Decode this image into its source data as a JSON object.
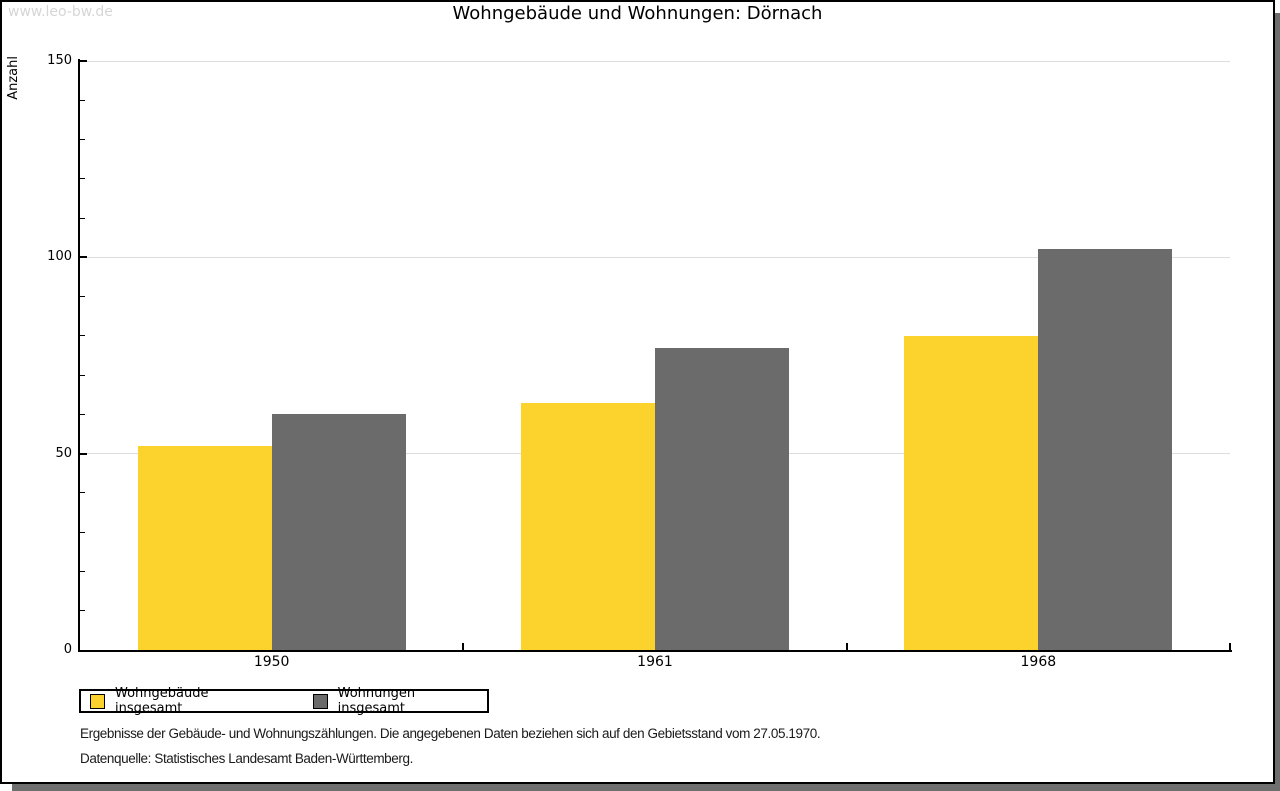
{
  "watermark": "www.leo-bw.de",
  "chart_data": {
    "type": "bar",
    "title": "Wohngebäude und Wohnungen: Dörnach",
    "ylabel": "Anzahl",
    "xlabel": "",
    "ylim": [
      0,
      150
    ],
    "yticks": [
      0,
      50,
      100,
      150
    ],
    "y_minor_step": 10,
    "grid": "horizontal-major-gridlines",
    "legend_position": "bottom-left",
    "categories": [
      "1950",
      "1961",
      "1968"
    ],
    "series": [
      {
        "name": "Wohngebäude insgesamt",
        "color": "#FCD32D",
        "values": [
          52,
          63,
          80
        ]
      },
      {
        "name": "Wohnungen insgesamt",
        "color": "#6B6B6B",
        "values": [
          60,
          77,
          102
        ]
      }
    ]
  },
  "footer": {
    "line1": "Ergebnisse der Gebäude- und Wohnungszählungen. Die angegebenen Daten beziehen sich auf den Gebietsstand vom 27.05.1970.",
    "line2": "Datenquelle: Statistisches Landesamt Baden-Württemberg."
  },
  "colors": {
    "bar_yellow": "#FCD32D",
    "bar_gray": "#6B6B6B",
    "gridline": "#DDDDDD",
    "axis": "#000000",
    "watermark_text": "#D6D6D6",
    "window_shadow": "#6E6E6E"
  }
}
